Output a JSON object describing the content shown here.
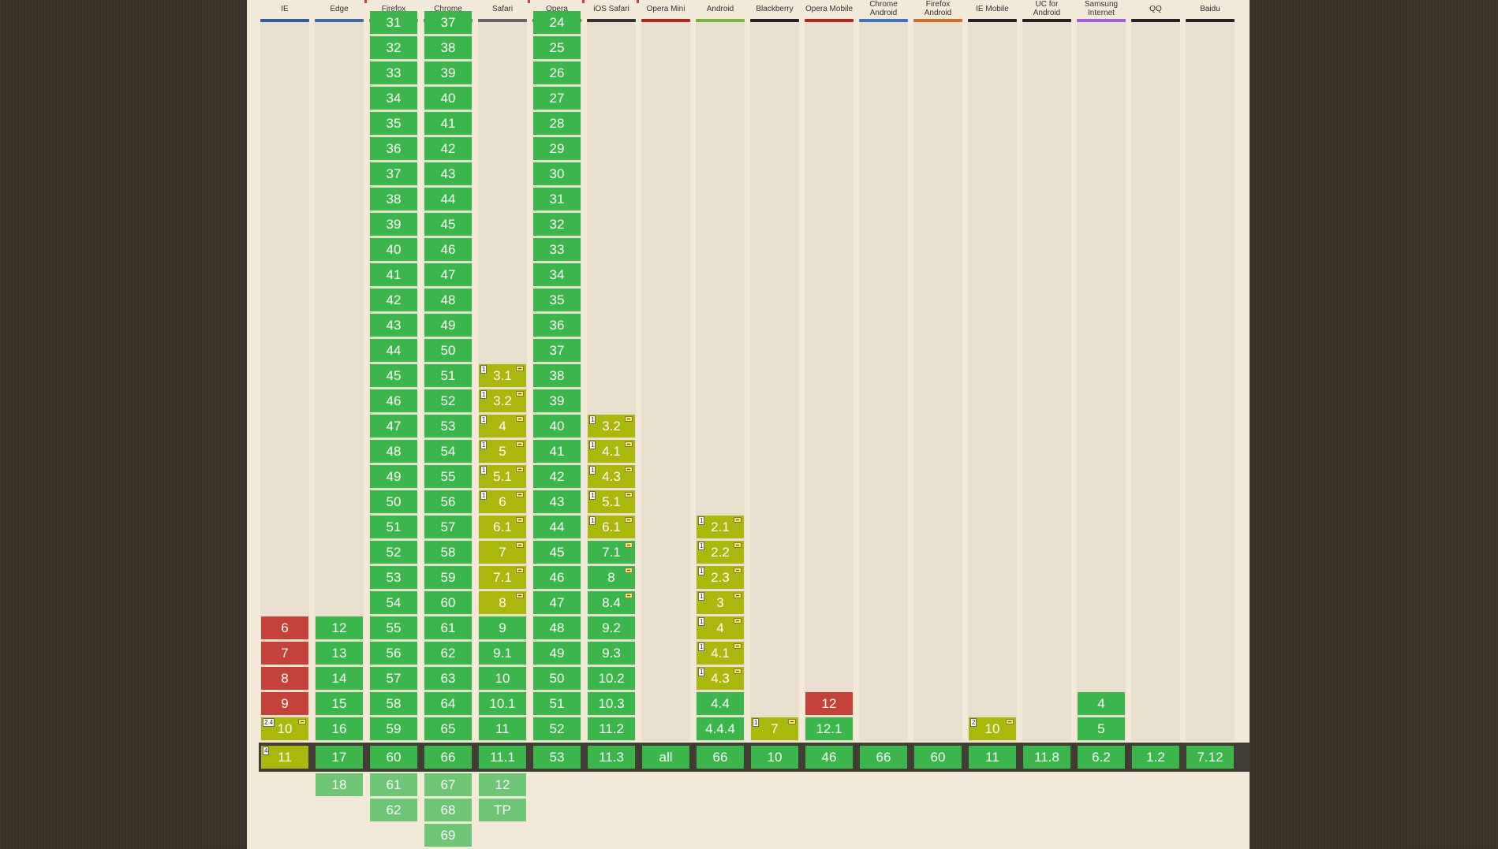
{
  "columns": [
    {
      "name": "IE",
      "color": "#2f5f99",
      "past": [],
      "ie_special": true,
      "current": {
        "v": "11",
        "s": "p",
        "note": "4",
        "flag": false
      },
      "future": []
    },
    {
      "name": "Edge",
      "color": "#3d6aa8",
      "past": [
        {
          "v": "12",
          "s": "y"
        },
        {
          "v": "13",
          "s": "y"
        },
        {
          "v": "14",
          "s": "y"
        },
        {
          "v": "15",
          "s": "y"
        },
        {
          "v": "16",
          "s": "y"
        }
      ],
      "current": {
        "v": "17",
        "s": "y"
      },
      "future": [
        "18"
      ]
    },
    {
      "name": "Firefox",
      "color": "#cf6f2a",
      "past": [
        {
          "v": "31",
          "s": "y"
        },
        {
          "v": "32",
          "s": "y"
        },
        {
          "v": "33",
          "s": "y"
        },
        {
          "v": "34",
          "s": "y"
        },
        {
          "v": "35",
          "s": "y"
        },
        {
          "v": "36",
          "s": "y"
        },
        {
          "v": "37",
          "s": "y"
        },
        {
          "v": "38",
          "s": "y"
        },
        {
          "v": "39",
          "s": "y"
        },
        {
          "v": "40",
          "s": "y"
        },
        {
          "v": "41",
          "s": "y"
        },
        {
          "v": "42",
          "s": "y"
        },
        {
          "v": "43",
          "s": "y"
        },
        {
          "v": "44",
          "s": "y"
        },
        {
          "v": "45",
          "s": "y"
        },
        {
          "v": "46",
          "s": "y"
        },
        {
          "v": "47",
          "s": "y"
        },
        {
          "v": "48",
          "s": "y"
        },
        {
          "v": "49",
          "s": "y"
        },
        {
          "v": "50",
          "s": "y"
        },
        {
          "v": "51",
          "s": "y"
        },
        {
          "v": "52",
          "s": "y"
        },
        {
          "v": "53",
          "s": "y"
        },
        {
          "v": "54",
          "s": "y"
        },
        {
          "v": "55",
          "s": "y"
        },
        {
          "v": "56",
          "s": "y"
        },
        {
          "v": "57",
          "s": "y"
        },
        {
          "v": "58",
          "s": "y"
        },
        {
          "v": "59",
          "s": "y"
        }
      ],
      "current": {
        "v": "60",
        "s": "y"
      },
      "future": [
        "61",
        "62"
      ]
    },
    {
      "name": "Chrome",
      "color": "#3a72c4",
      "past": [
        {
          "v": "37",
          "s": "y"
        },
        {
          "v": "38",
          "s": "y"
        },
        {
          "v": "39",
          "s": "y"
        },
        {
          "v": "40",
          "s": "y"
        },
        {
          "v": "41",
          "s": "y"
        },
        {
          "v": "42",
          "s": "y"
        },
        {
          "v": "43",
          "s": "y"
        },
        {
          "v": "44",
          "s": "y"
        },
        {
          "v": "45",
          "s": "y"
        },
        {
          "v": "46",
          "s": "y"
        },
        {
          "v": "47",
          "s": "y"
        },
        {
          "v": "48",
          "s": "y"
        },
        {
          "v": "49",
          "s": "y"
        },
        {
          "v": "50",
          "s": "y"
        },
        {
          "v": "51",
          "s": "y"
        },
        {
          "v": "52",
          "s": "y"
        },
        {
          "v": "53",
          "s": "y"
        },
        {
          "v": "54",
          "s": "y"
        },
        {
          "v": "55",
          "s": "y"
        },
        {
          "v": "56",
          "s": "y"
        },
        {
          "v": "57",
          "s": "y"
        },
        {
          "v": "58",
          "s": "y"
        },
        {
          "v": "59",
          "s": "y"
        },
        {
          "v": "60",
          "s": "y"
        },
        {
          "v": "61",
          "s": "y"
        },
        {
          "v": "62",
          "s": "y"
        },
        {
          "v": "63",
          "s": "y"
        },
        {
          "v": "64",
          "s": "y"
        },
        {
          "v": "65",
          "s": "y"
        }
      ],
      "current": {
        "v": "66",
        "s": "y"
      },
      "future": [
        "67",
        "68",
        "69"
      ]
    },
    {
      "name": "Safari",
      "color": "#666666",
      "past": [
        {
          "v": "3.1",
          "s": "p",
          "note": "1",
          "flag": true
        },
        {
          "v": "3.2",
          "s": "p",
          "note": "1",
          "flag": true
        },
        {
          "v": "4",
          "s": "p",
          "note": "1",
          "flag": true
        },
        {
          "v": "5",
          "s": "p",
          "note": "1",
          "flag": true
        },
        {
          "v": "5.1",
          "s": "p",
          "note": "1",
          "flag": true
        },
        {
          "v": "6",
          "s": "p",
          "note": "1",
          "flag": true
        },
        {
          "v": "6.1",
          "s": "p",
          "flag": true
        },
        {
          "v": "7",
          "s": "p",
          "flag": true
        },
        {
          "v": "7.1",
          "s": "p",
          "flag": true
        },
        {
          "v": "8",
          "s": "p",
          "flag": true
        },
        {
          "v": "9",
          "s": "y"
        },
        {
          "v": "9.1",
          "s": "y"
        },
        {
          "v": "10",
          "s": "y"
        },
        {
          "v": "10.1",
          "s": "y"
        },
        {
          "v": "11",
          "s": "y"
        }
      ],
      "current": {
        "v": "11.1",
        "s": "y"
      },
      "future": [
        "12",
        "TP"
      ]
    },
    {
      "name": "Opera",
      "color": "#b3261e",
      "past": [
        {
          "v": "24",
          "s": "y"
        },
        {
          "v": "25",
          "s": "y"
        },
        {
          "v": "26",
          "s": "y"
        },
        {
          "v": "27",
          "s": "y"
        },
        {
          "v": "28",
          "s": "y"
        },
        {
          "v": "29",
          "s": "y"
        },
        {
          "v": "30",
          "s": "y"
        },
        {
          "v": "31",
          "s": "y"
        },
        {
          "v": "32",
          "s": "y"
        },
        {
          "v": "33",
          "s": "y"
        },
        {
          "v": "34",
          "s": "y"
        },
        {
          "v": "35",
          "s": "y"
        },
        {
          "v": "36",
          "s": "y"
        },
        {
          "v": "37",
          "s": "y"
        },
        {
          "v": "38",
          "s": "y"
        },
        {
          "v": "39",
          "s": "y"
        },
        {
          "v": "40",
          "s": "y"
        },
        {
          "v": "41",
          "s": "y"
        },
        {
          "v": "42",
          "s": "y"
        },
        {
          "v": "43",
          "s": "y"
        },
        {
          "v": "44",
          "s": "y"
        },
        {
          "v": "45",
          "s": "y"
        },
        {
          "v": "46",
          "s": "y"
        },
        {
          "v": "47",
          "s": "y"
        },
        {
          "v": "48",
          "s": "y"
        },
        {
          "v": "49",
          "s": "y"
        },
        {
          "v": "50",
          "s": "y"
        },
        {
          "v": "51",
          "s": "y"
        },
        {
          "v": "52",
          "s": "y"
        }
      ],
      "current": {
        "v": "53",
        "s": "y"
      },
      "future": []
    },
    {
      "name": "iOS Safari",
      "color": "#333333",
      "past": [
        {
          "v": "3.2",
          "s": "p",
          "note": "1",
          "flag": true
        },
        {
          "v": "4.1",
          "s": "p",
          "note": "1",
          "flag": true
        },
        {
          "v": "4.3",
          "s": "p",
          "note": "1",
          "flag": true
        },
        {
          "v": "5.1",
          "s": "p",
          "note": "1",
          "flag": true
        },
        {
          "v": "6.1",
          "s": "p",
          "note": "1",
          "flag": true
        },
        {
          "v": "7.1",
          "s": "y",
          "flag": true
        },
        {
          "v": "8",
          "s": "y",
          "flag": true
        },
        {
          "v": "8.4",
          "s": "y",
          "flag": true
        },
        {
          "v": "9.2",
          "s": "y"
        },
        {
          "v": "9.3",
          "s": "y"
        },
        {
          "v": "10.2",
          "s": "y"
        },
        {
          "v": "10.3",
          "s": "y"
        },
        {
          "v": "11.2",
          "s": "y"
        }
      ],
      "current": {
        "v": "11.3",
        "s": "y"
      },
      "future": []
    },
    {
      "name": "Opera Mini",
      "color": "#b3261e",
      "past": [],
      "current": {
        "v": "all",
        "s": "y"
      },
      "future": []
    },
    {
      "name": "Android",
      "color": "#78b340",
      "past": [
        {
          "v": "2.1",
          "s": "p",
          "note": "1",
          "flag": true
        },
        {
          "v": "2.2",
          "s": "p",
          "note": "1",
          "flag": true
        },
        {
          "v": "2.3",
          "s": "p",
          "note": "1",
          "flag": true
        },
        {
          "v": "3",
          "s": "p",
          "note": "1",
          "flag": true
        },
        {
          "v": "4",
          "s": "p",
          "note": "1",
          "flag": true
        },
        {
          "v": "4.1",
          "s": "p",
          "note": "1",
          "flag": true
        },
        {
          "v": "4.3",
          "s": "p",
          "note": "1",
          "flag": true
        },
        {
          "v": "4.4",
          "s": "y"
        },
        {
          "v": "4.4.4",
          "s": "y"
        }
      ],
      "current": {
        "v": "66",
        "s": "y"
      },
      "future": []
    },
    {
      "name": "Blackberry",
      "color": "#222222",
      "past": [
        {
          "v": "7",
          "s": "p",
          "note": "1",
          "flag": true
        }
      ],
      "current": {
        "v": "10",
        "s": "y"
      },
      "future": []
    },
    {
      "name": "Opera Mobile",
      "color": "#b3261e",
      "past": [
        {
          "v": "12",
          "s": "n"
        },
        {
          "v": "12.1",
          "s": "y"
        }
      ],
      "current": {
        "v": "46",
        "s": "y"
      },
      "future": []
    },
    {
      "name": "Chrome Android",
      "color": "#3a72c4",
      "past": [],
      "current": {
        "v": "66",
        "s": "y"
      },
      "future": []
    },
    {
      "name": "Firefox Android",
      "color": "#cf6f2a",
      "past": [],
      "current": {
        "v": "60",
        "s": "y"
      },
      "future": []
    },
    {
      "name": "IE Mobile",
      "color": "#222222",
      "past": [
        {
          "v": "10",
          "s": "p",
          "note": "2",
          "flag": true
        }
      ],
      "current": {
        "v": "11",
        "s": "y"
      },
      "future": []
    },
    {
      "name": "UC for Android",
      "color": "#222222",
      "past": [],
      "current": {
        "v": "11.8",
        "s": "y"
      },
      "future": []
    },
    {
      "name": "Samsung Internet",
      "color": "#a65ce0",
      "past": [
        {
          "v": "4",
          "s": "y"
        },
        {
          "v": "5",
          "s": "y"
        }
      ],
      "current": {
        "v": "6.2",
        "s": "y"
      },
      "future": []
    },
    {
      "name": "QQ",
      "color": "#222222",
      "past": [],
      "current": {
        "v": "1.2",
        "s": "y"
      },
      "future": []
    },
    {
      "name": "Baidu",
      "color": "#222222",
      "past": [],
      "current": {
        "v": "7.12",
        "s": "y"
      },
      "future": []
    }
  ],
  "ie_past": [
    {
      "v": "6",
      "s": "n"
    },
    {
      "v": "7",
      "s": "n"
    },
    {
      "v": "8",
      "s": "n"
    },
    {
      "v": "9",
      "s": "n"
    },
    {
      "v": "10",
      "s": "p",
      "note": "2 4",
      "flag": true
    }
  ],
  "colors": {
    "supported": "#3ab64a",
    "partial": "#a9b80b",
    "unsupported": "#c4423a",
    "future": "#6dc576"
  }
}
